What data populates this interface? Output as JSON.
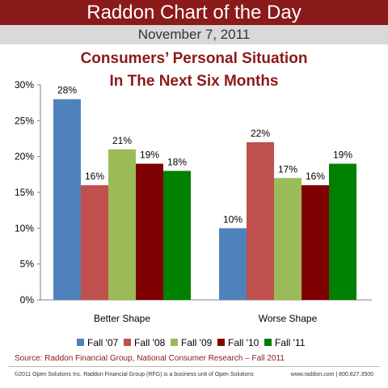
{
  "header": {
    "banner": "Raddon Chart of the Day",
    "date": "November 7, 2011"
  },
  "chart_data": {
    "type": "bar",
    "title_line1": "Consumers’ Personal Situation",
    "title_line2": "In The Next Six Months",
    "categories": [
      "Better Shape",
      "Worse Shape"
    ],
    "series": [
      {
        "name": "Fall '07",
        "values": [
          28,
          10
        ],
        "color": "#4f81bd"
      },
      {
        "name": "Fall '08",
        "values": [
          16,
          22
        ],
        "color": "#c0504d"
      },
      {
        "name": "Fall '09",
        "values": [
          21,
          17
        ],
        "color": "#9bbb59"
      },
      {
        "name": "Fall '10",
        "values": [
          19,
          16
        ],
        "color": "#7f0000"
      },
      {
        "name": "Fall '11",
        "values": [
          18,
          19
        ],
        "color": "#008000"
      }
    ],
    "ylim": [
      0,
      30
    ],
    "yticks": [
      "0%",
      "5%",
      "10%",
      "15%",
      "20%",
      "25%",
      "30%"
    ],
    "data_labels": [
      [
        "28%",
        "10%"
      ],
      [
        "16%",
        "22%"
      ],
      [
        "21%",
        "17%"
      ],
      [
        "19%",
        "16%"
      ],
      [
        "18%",
        "19%"
      ]
    ],
    "legend_position": "bottom",
    "grid": false
  },
  "footer": {
    "source": "Source: Raddon Financial Group, National Consumer Research – Fall 2011",
    "copyright": "©2011 Open Solutions Inc.  Raddon Financial Group (RFG) is a business unit of Open Solutions",
    "contact": "www.raddon.com  |  800.827.3500"
  }
}
